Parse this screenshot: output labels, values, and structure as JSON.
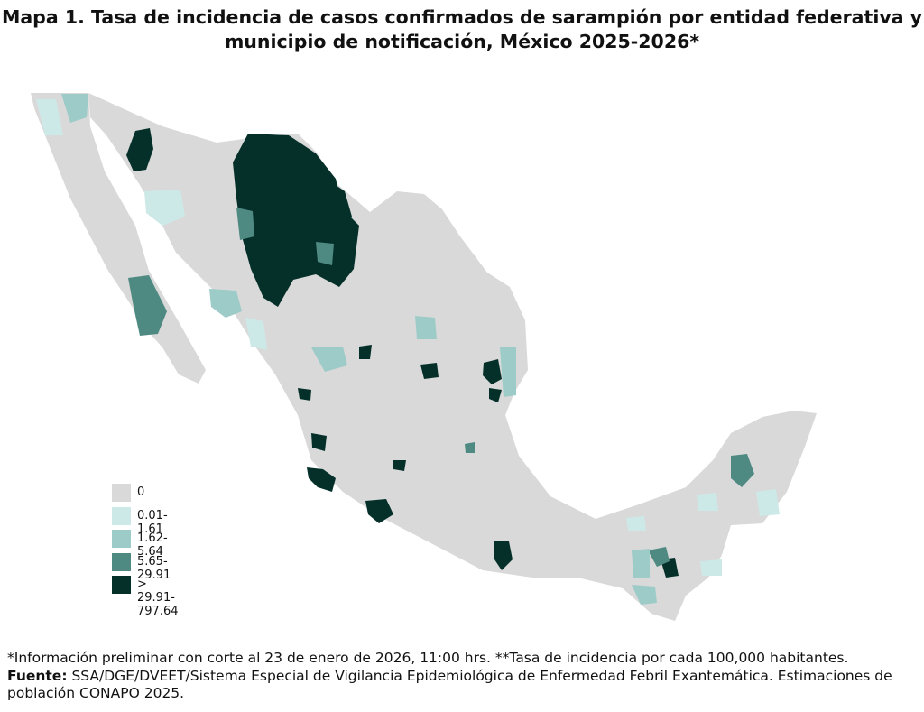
{
  "title": {
    "line1": "Mapa 1. Tasa de incidencia de casos confirmados de sarampión por entidad federativa y",
    "line2": "municipio de  notificación, México 2025-2026*"
  },
  "legend": [
    {
      "label": "0",
      "color": "#d9d9d9"
    },
    {
      "label": "0.01-1.61",
      "color": "#cde9e7"
    },
    {
      "label": "1.62-5.64",
      "color": "#9ccbc8"
    },
    {
      "label": "5.65-29.91",
      "color": "#4e8a82"
    },
    {
      "label": "> 29.91-797.64",
      "color": "#05302a"
    }
  ],
  "notes": {
    "line1": "*Información preliminar con corte al 23 de enero de 2026, 11:00 hrs. **Tasa de incidencia por cada 100,000 habitantes.",
    "fuente_label": "Fuente:",
    "fuente_text": " SSA/DGE/DVEET/Sistema Especial de Vigilancia Epidemiológica de Enfermedad Febril Exantemática. Estimaciones de población CONAPO 2025."
  }
}
